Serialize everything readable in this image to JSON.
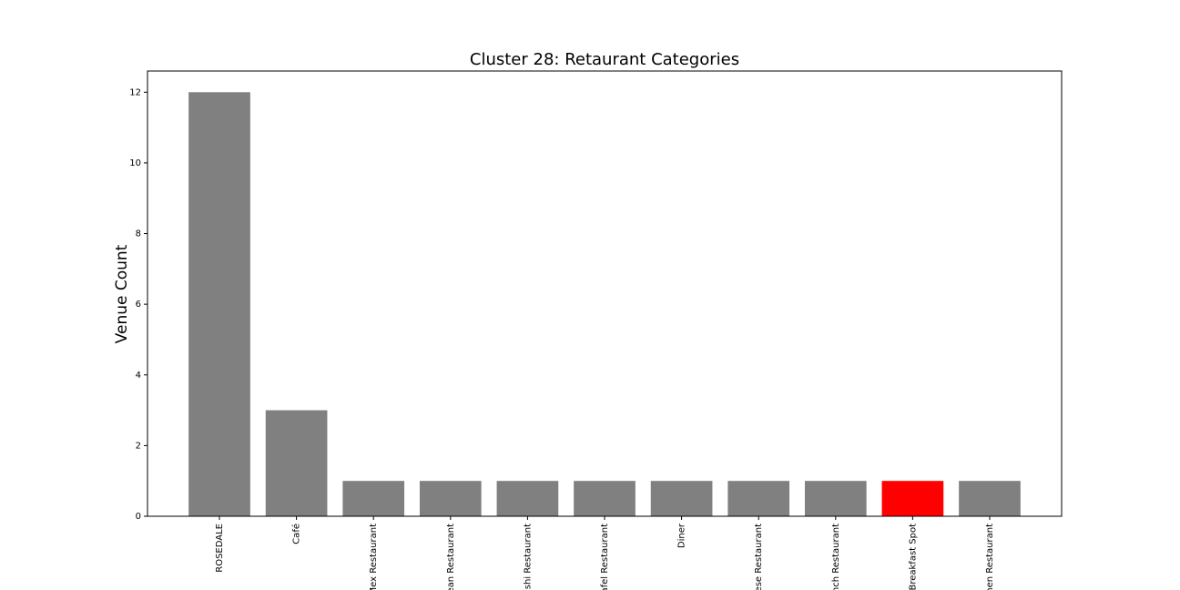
{
  "chart_data": {
    "type": "bar",
    "title": "Cluster 28: Retaurant Categories",
    "y_label": "Venue Count",
    "categories": [
      "ROSEDALE",
      "Café",
      "Mex Restaurant",
      "ean Restaurant",
      "shi Restaurant",
      "afel Restaurant",
      "Diner",
      "ese Restaurant",
      "nch Restaurant",
      "Breakfast Spot",
      "nen Restaurant"
    ],
    "values": [
      12,
      3,
      1,
      1,
      1,
      1,
      1,
      1,
      1,
      1,
      1
    ],
    "colors": [
      "#808080",
      "#808080",
      "#808080",
      "#808080",
      "#808080",
      "#808080",
      "#808080",
      "#808080",
      "#808080",
      "#ff0000",
      "#808080"
    ],
    "ylim": [
      0,
      12.6
    ],
    "yticks": [
      0,
      2,
      4,
      6,
      8,
      10,
      12
    ],
    "grid": false
  }
}
